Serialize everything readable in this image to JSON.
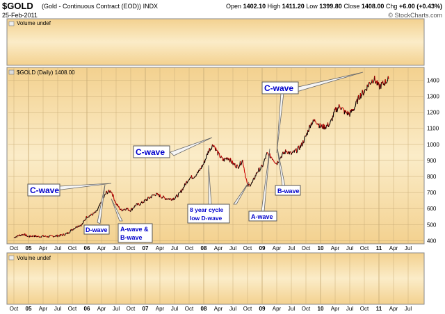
{
  "header": {
    "symbol": "$GOLD",
    "description": "(Gold - Continuous Contract (EOD))",
    "exchange": "INDX",
    "date": "25-Feb-2011",
    "open_label": "Open",
    "open": "1402.10",
    "high_label": "High",
    "high": "1411.20",
    "low_label": "Low",
    "low": "1399.80",
    "close_label": "Close",
    "close": "1408.00",
    "chg_label": "Chg",
    "chg": "+6.00 (+0.43%)",
    "brand": "© StockCharts.com"
  },
  "panels": {
    "volume_top": "Volume undef",
    "price_legend": "$GOLD (Daily) 1408.00",
    "volume_bottom": "Volume undef"
  },
  "colors": {
    "panel_bg": "#f5d89a",
    "panel_bg_light": "#fbeed2",
    "grid": "#c9ad78",
    "price_line": "#000000",
    "price_down": "#cc0000",
    "annotation_text": "#0000cc",
    "annotation_box": "#ffffff"
  },
  "chart_data": {
    "type": "line",
    "title": "$GOLD (Daily) 1408.00",
    "ylim": [
      380,
      1480
    ],
    "y_ticks": [
      400,
      500,
      600,
      700,
      800,
      900,
      1000,
      1100,
      1200,
      1300,
      1400
    ],
    "x_tick_labels": [
      "Oct",
      "05",
      "Apr",
      "Jul",
      "Oct",
      "06",
      "Apr",
      "Jul",
      "Oct",
      "07",
      "Apr",
      "Jul",
      "Oct",
      "08",
      "Apr",
      "Jul",
      "Oct",
      "09",
      "Apr",
      "Jul",
      "Oct",
      "10",
      "Apr",
      "Jul",
      "Oct",
      "11",
      "Apr",
      "Jul"
    ],
    "x_months_since_oct2004": [
      0,
      3,
      6,
      9,
      12,
      15,
      18,
      21,
      24,
      27,
      30,
      33,
      36,
      39,
      42,
      45,
      48,
      51,
      54,
      57,
      60,
      63,
      66,
      69,
      72,
      75,
      78,
      81
    ],
    "grid": true,
    "series": [
      {
        "values_by_month": [
          [
            0,
            420
          ],
          [
            1,
            432
          ],
          [
            2,
            440
          ],
          [
            3,
            425
          ],
          [
            4,
            430
          ],
          [
            5,
            425
          ],
          [
            6,
            428
          ],
          [
            7,
            425
          ],
          [
            8,
            428
          ],
          [
            9,
            430
          ],
          [
            10,
            435
          ],
          [
            11,
            445
          ],
          [
            12,
            470
          ],
          [
            13,
            490
          ],
          [
            14,
            500
          ],
          [
            15,
            550
          ],
          [
            16,
            560
          ],
          [
            17,
            580
          ],
          [
            18,
            640
          ],
          [
            19,
            700
          ],
          [
            20,
            710
          ],
          [
            21,
            630
          ],
          [
            22,
            590
          ],
          [
            23,
            600
          ],
          [
            24,
            590
          ],
          [
            25,
            620
          ],
          [
            26,
            630
          ],
          [
            27,
            650
          ],
          [
            28,
            670
          ],
          [
            29,
            690
          ],
          [
            30,
            680
          ],
          [
            31,
            665
          ],
          [
            32,
            660
          ],
          [
            33,
            665
          ],
          [
            34,
            690
          ],
          [
            35,
            740
          ],
          [
            36,
            790
          ],
          [
            37,
            800
          ],
          [
            38,
            830
          ],
          [
            39,
            880
          ],
          [
            40,
            960
          ],
          [
            41,
            1000
          ],
          [
            42,
            940
          ],
          [
            43,
            900
          ],
          [
            44,
            920
          ],
          [
            45,
            880
          ],
          [
            46,
            860
          ],
          [
            47,
            900
          ],
          [
            48,
            740
          ],
          [
            49,
            760
          ],
          [
            50,
            830
          ],
          [
            51,
            860
          ],
          [
            52,
            940
          ],
          [
            53,
            920
          ],
          [
            54,
            880
          ],
          [
            55,
            930
          ],
          [
            56,
            960
          ],
          [
            57,
            940
          ],
          [
            58,
            960
          ],
          [
            59,
            990
          ],
          [
            60,
            1050
          ],
          [
            61,
            1130
          ],
          [
            62,
            1150
          ],
          [
            63,
            1110
          ],
          [
            64,
            1110
          ],
          [
            65,
            1130
          ],
          [
            66,
            1210
          ],
          [
            67,
            1240
          ],
          [
            68,
            1200
          ],
          [
            69,
            1190
          ],
          [
            70,
            1230
          ],
          [
            71,
            1300
          ],
          [
            72,
            1330
          ],
          [
            73,
            1380
          ],
          [
            74,
            1410
          ],
          [
            75,
            1360
          ],
          [
            76,
            1380
          ],
          [
            77,
            1408
          ]
        ]
      }
    ],
    "annotations": [
      "C-wave",
      "D-wave",
      "A-wave &",
      "B-wave",
      "C-wave",
      "8 year cycle",
      "low D-wave",
      "A-wave",
      "B-wave",
      "C-wave"
    ]
  }
}
